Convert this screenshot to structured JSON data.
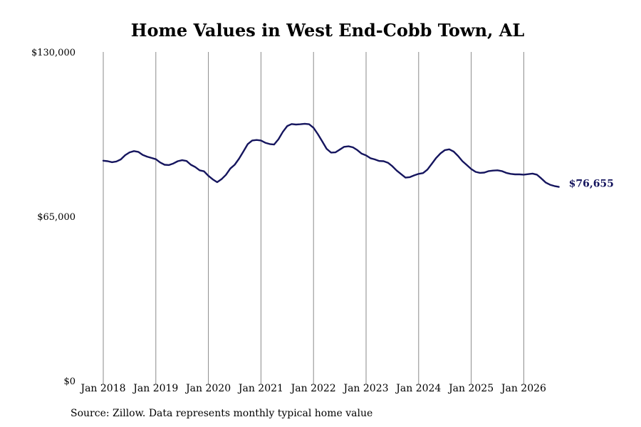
{
  "chart_data": {
    "type": "line",
    "title": "Home Values in West End-Cobb Town, AL",
    "xlabel": "",
    "ylabel": "",
    "ylim": [
      0,
      130000
    ],
    "y_ticks": [
      "$0",
      "$65,000",
      "$130,000"
    ],
    "y_tick_values": [
      0,
      65000,
      130000
    ],
    "x_ticks": [
      "Jan 2018",
      "Jan 2019",
      "Jan 2020",
      "Jan 2021",
      "Jan 2022",
      "Jan 2023",
      "Jan 2024",
      "Jan 2025",
      "Jan 2026"
    ],
    "grid": "vertical",
    "line_color": "#15155e",
    "end_label": "$76,655",
    "series": [
      {
        "x": [
          "2018-01",
          "2018-02",
          "2018-03",
          "2018-04",
          "2018-05",
          "2018-06",
          "2018-07",
          "2018-08",
          "2018-09",
          "2018-10",
          "2018-11",
          "2018-12",
          "2019-01",
          "2019-02",
          "2019-03",
          "2019-04",
          "2019-05",
          "2019-06",
          "2019-07",
          "2019-08",
          "2019-09",
          "2019-10",
          "2019-11",
          "2019-12",
          "2020-01",
          "2020-02",
          "2020-03",
          "2020-04",
          "2020-05",
          "2020-06",
          "2020-07",
          "2020-08",
          "2020-09",
          "2020-10",
          "2020-11",
          "2020-12",
          "2021-01",
          "2021-02",
          "2021-03",
          "2021-04",
          "2021-05",
          "2021-06",
          "2021-07",
          "2021-08",
          "2021-09",
          "2021-10",
          "2021-11",
          "2021-12",
          "2022-01",
          "2022-02",
          "2022-03",
          "2022-04",
          "2022-05",
          "2022-06",
          "2022-07",
          "2022-08",
          "2022-09",
          "2022-10",
          "2022-11",
          "2022-12",
          "2023-01",
          "2023-02",
          "2023-03",
          "2023-04",
          "2023-05",
          "2023-06",
          "2023-07",
          "2023-08",
          "2023-09",
          "2023-10",
          "2023-11",
          "2023-12",
          "2024-01",
          "2024-02",
          "2024-03",
          "2024-04",
          "2024-05",
          "2024-06",
          "2024-07",
          "2024-08",
          "2024-09",
          "2024-10",
          "2024-11",
          "2024-12",
          "2025-01",
          "2025-02",
          "2025-03",
          "2025-04",
          "2025-05",
          "2025-06",
          "2025-07",
          "2025-08",
          "2025-09",
          "2025-10",
          "2025-11",
          "2025-12",
          "2026-01",
          "2026-02",
          "2026-03",
          "2026-04",
          "2026-05",
          "2026-06",
          "2026-07",
          "2026-08",
          "2026-09"
        ],
        "values": [
          87000,
          86800,
          86400,
          86700,
          87500,
          89200,
          90300,
          90800,
          90500,
          89300,
          88600,
          88100,
          87600,
          86300,
          85400,
          85300,
          85900,
          86800,
          87200,
          86900,
          85400,
          84500,
          83200,
          82800,
          81000,
          79600,
          78500,
          79700,
          81400,
          83900,
          85400,
          87800,
          90700,
          93600,
          95000,
          95200,
          95000,
          94100,
          93600,
          93400,
          95500,
          98400,
          100700,
          101500,
          101300,
          101400,
          101600,
          101400,
          100000,
          97500,
          94600,
          91700,
          90200,
          90300,
          91400,
          92500,
          92700,
          92300,
          91200,
          89800,
          89100,
          88000,
          87500,
          86900,
          86800,
          86200,
          84800,
          83100,
          81700,
          80300,
          80500,
          81200,
          81800,
          82100,
          83500,
          85800,
          88100,
          89900,
          91200,
          91500,
          90600,
          88900,
          86800,
          85300,
          83700,
          82600,
          82200,
          82300,
          82900,
          83100,
          83200,
          82900,
          82200,
          81800,
          81600,
          81600,
          81500,
          81700,
          81900,
          81500,
          80000,
          78400,
          77500,
          77000,
          76655
        ]
      }
    ]
  },
  "source_note": "Source: Zillow. Data represents monthly typical home value"
}
